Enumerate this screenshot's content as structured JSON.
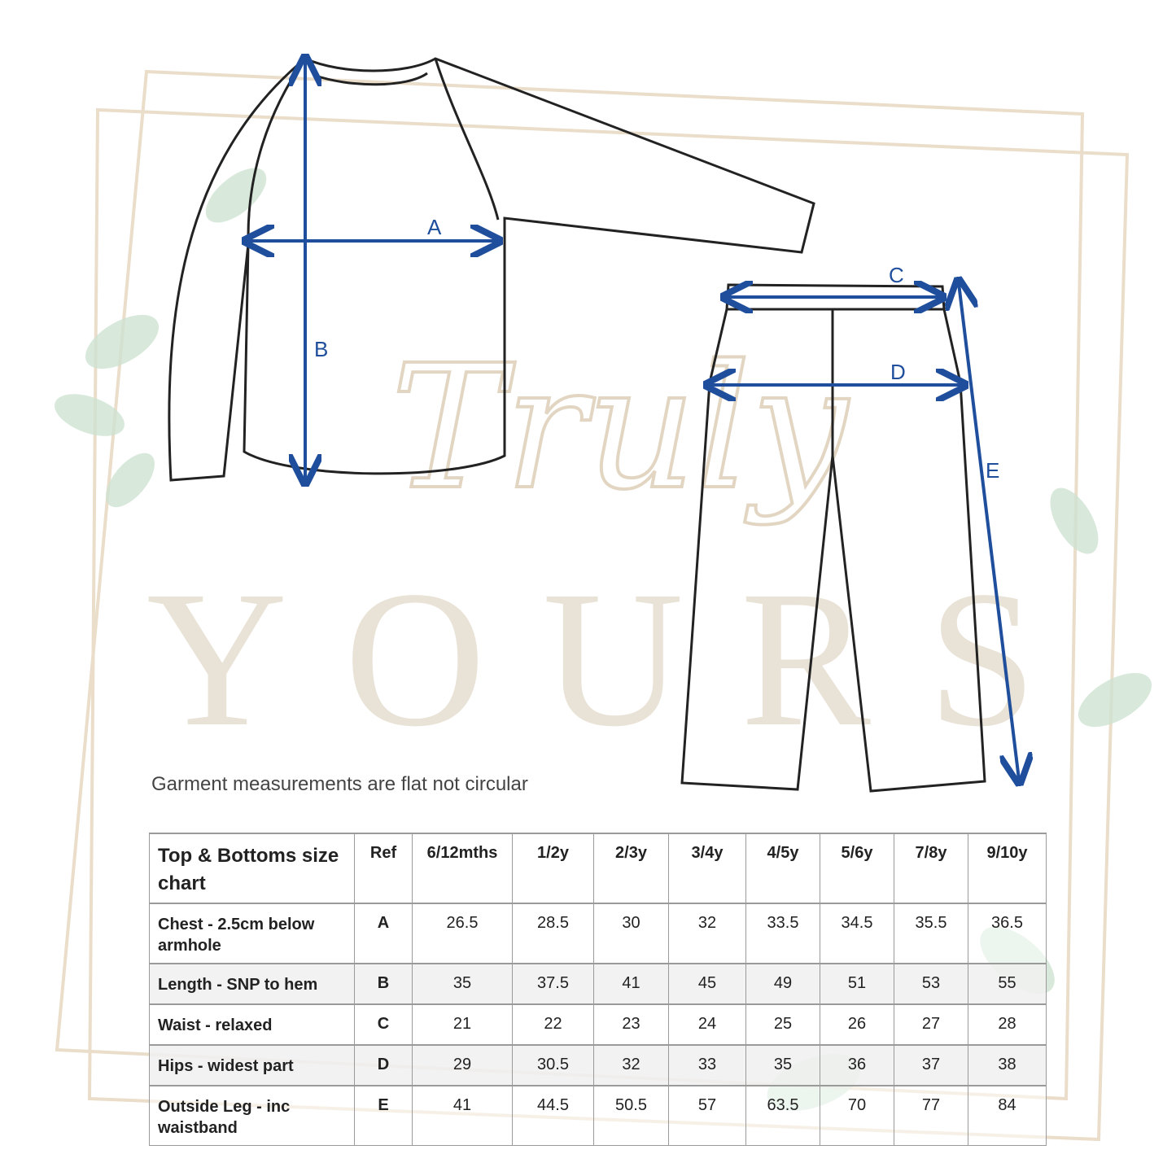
{
  "watermark": {
    "script": "Truly",
    "serif": "YOURS"
  },
  "labels": {
    "a": "A",
    "b": "B",
    "c": "C",
    "d": "D",
    "e": "E"
  },
  "colors": {
    "arrow": "#1f4e9c",
    "watermark": "#e9e2d6",
    "leaf": "#cfe3d3"
  },
  "note": "Garment measurements are flat not circular",
  "table": {
    "title": "Top & Bottoms size chart",
    "headers": [
      "Ref",
      "6/12mths",
      "1/2y",
      "2/3y",
      "3/4y",
      "4/5y",
      "5/6y",
      "7/8y",
      "9/10y"
    ],
    "rows": [
      {
        "label": "Chest - 2.5cm below armhole",
        "ref": "A",
        "values": [
          "26.5",
          "28.5",
          "30",
          "32",
          "33.5",
          "34.5",
          "35.5",
          "36.5"
        ]
      },
      {
        "label": "Length - SNP to hem",
        "ref": "B",
        "values": [
          "35",
          "37.5",
          "41",
          "45",
          "49",
          "51",
          "53",
          "55"
        ]
      },
      {
        "label": "Waist - relaxed",
        "ref": "C",
        "values": [
          "21",
          "22",
          "23",
          "24",
          "25",
          "26",
          "27",
          "28"
        ]
      },
      {
        "label": "Hips - widest part",
        "ref": "D",
        "values": [
          "29",
          "30.5",
          "32",
          "33",
          "35",
          "36",
          "37",
          "38"
        ]
      },
      {
        "label": "Outside Leg - inc waistband",
        "ref": "E",
        "values": [
          "41",
          "44.5",
          "50.5",
          "57",
          "63.5",
          "70",
          "77",
          "84"
        ]
      }
    ]
  }
}
